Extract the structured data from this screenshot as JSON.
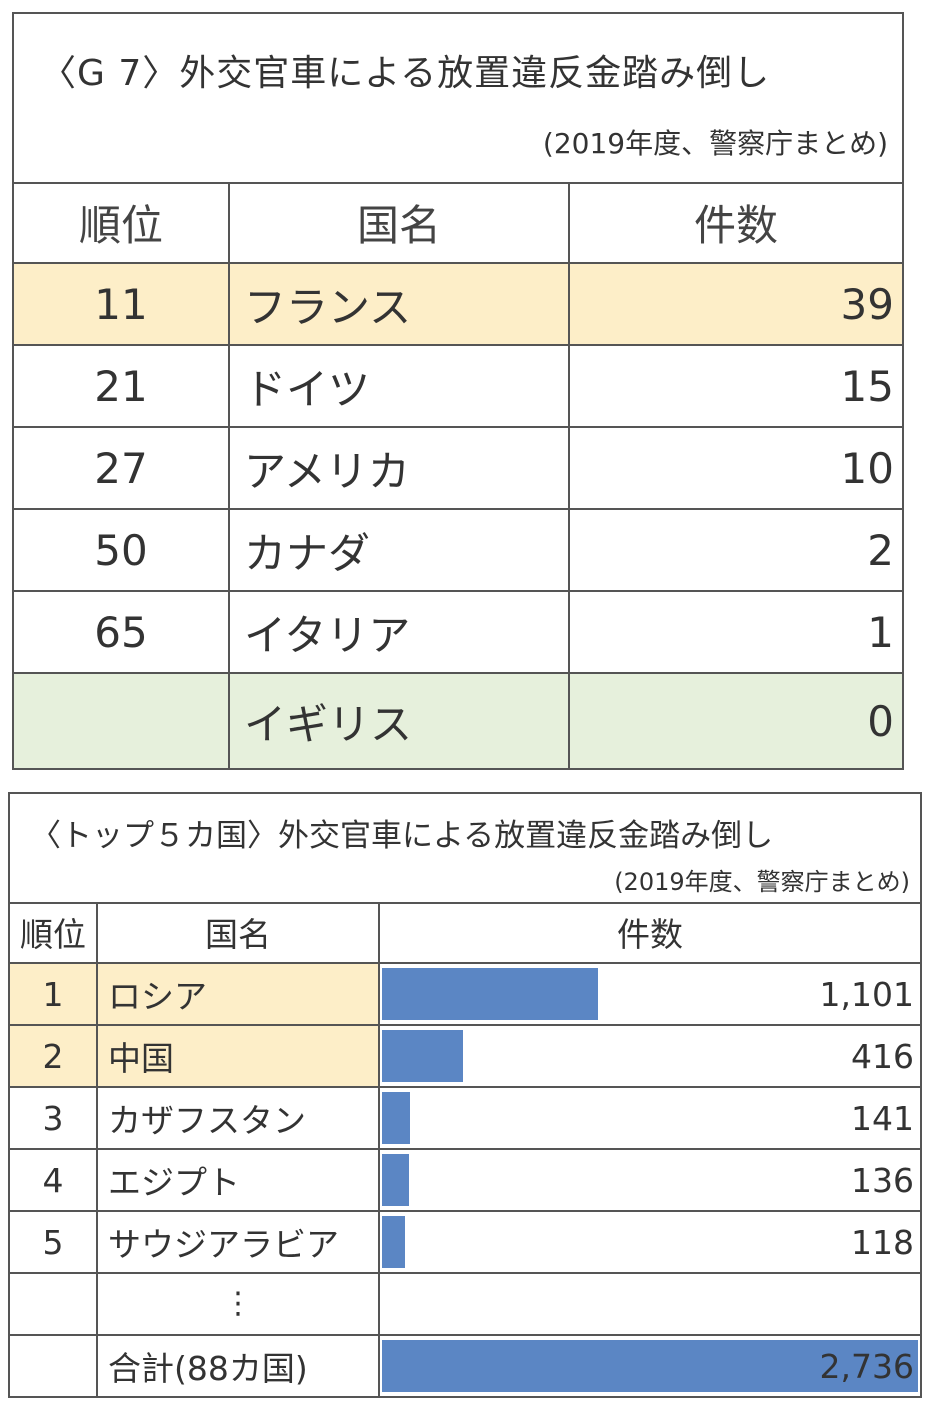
{
  "g7_table": {
    "title": "〈G 7〉外交官車による放置違反金踏み倒し",
    "subtitle": "(2019年度、警察庁まとめ)",
    "headers": [
      "順位",
      "国名",
      "件数"
    ],
    "rows": [
      {
        "rank": "11",
        "country": "フランス",
        "count": "39"
      },
      {
        "rank": "21",
        "country": "ドイツ",
        "count": "15"
      },
      {
        "rank": "27",
        "country": "アメリカ",
        "count": "10"
      },
      {
        "rank": "50",
        "country": "カナダ",
        "count": "2"
      },
      {
        "rank": "65",
        "country": "イタリア",
        "count": "1"
      },
      {
        "rank": "",
        "country": "イギリス",
        "count": "0"
      }
    ]
  },
  "top5_table": {
    "title": "〈トップ５カ国〉外交官車による放置違反金踏み倒し",
    "subtitle": "(2019年度、警察庁まとめ)",
    "headers": [
      "順位",
      "国名",
      "件数"
    ],
    "rows": [
      {
        "rank": "1",
        "country": "ロシア",
        "count": "1,101"
      },
      {
        "rank": "2",
        "country": "中国",
        "count": "416"
      },
      {
        "rank": "3",
        "country": "カザフスタン",
        "count": "141"
      },
      {
        "rank": "4",
        "country": "エジプト",
        "count": "136"
      },
      {
        "rank": "5",
        "country": "サウジアラビア",
        "count": "118"
      }
    ],
    "ellipsis": "⋮",
    "total": {
      "label": "合計(88カ国)",
      "count": "2,736"
    }
  },
  "colors": {
    "bar": "#5b86c4",
    "highlight_yellow": "#fdeec8",
    "highlight_green": "#e6f0dc",
    "border": "#555555"
  },
  "chart_data": [
    {
      "type": "table",
      "title": "〈G 7〉外交官車による放置違反金踏み倒し",
      "subtitle": "(2019年度、警察庁まとめ)",
      "columns": [
        "順位",
        "国名",
        "件数"
      ],
      "categories": [
        "フランス",
        "ドイツ",
        "アメリカ",
        "カナダ",
        "イタリア",
        "イギリス"
      ],
      "ranks": [
        11,
        21,
        27,
        50,
        65,
        null
      ],
      "values": [
        39,
        15,
        10,
        2,
        1,
        0
      ]
    },
    {
      "type": "bar",
      "title": "〈トップ５カ国〉外交官車による放置違反金踏み倒し",
      "subtitle": "(2019年度、警察庁まとめ)",
      "columns": [
        "順位",
        "国名",
        "件数"
      ],
      "categories": [
        "ロシア",
        "中国",
        "カザフスタン",
        "エジプト",
        "サウジアラビア",
        "合計(88カ国)"
      ],
      "ranks": [
        1,
        2,
        3,
        4,
        5,
        null
      ],
      "values": [
        1101,
        416,
        141,
        136,
        118,
        2736
      ],
      "xlim": [
        0,
        2736
      ],
      "orientation": "horizontal"
    }
  ]
}
